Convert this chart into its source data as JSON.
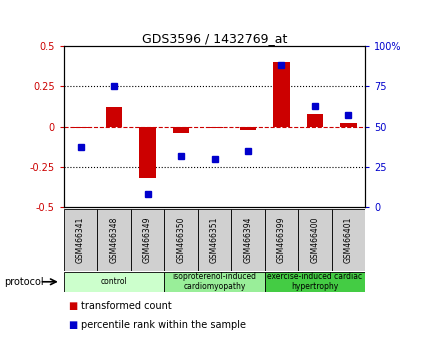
{
  "title": "GDS3596 / 1432769_at",
  "samples": [
    "GSM466341",
    "GSM466348",
    "GSM466349",
    "GSM466350",
    "GSM466351",
    "GSM466394",
    "GSM466399",
    "GSM466400",
    "GSM466401"
  ],
  "transformed_count": [
    -0.01,
    0.12,
    -0.32,
    -0.04,
    -0.01,
    -0.02,
    0.4,
    0.08,
    0.02
  ],
  "percentile_rank": [
    37,
    75,
    8,
    32,
    30,
    35,
    88,
    63,
    57
  ],
  "groups": [
    {
      "label": "control",
      "start": 0,
      "end": 3,
      "color": "#ccffcc"
    },
    {
      "label": "isoproterenol-induced\ncardiomyopathy",
      "start": 3,
      "end": 6,
      "color": "#99ee99"
    },
    {
      "label": "exercise-induced cardiac\nhypertrophy",
      "start": 6,
      "end": 9,
      "color": "#44cc44"
    }
  ],
  "bar_color": "#cc0000",
  "dot_color": "#0000cc",
  "left_ylim": [
    -0.5,
    0.5
  ],
  "right_ylim": [
    0,
    100
  ],
  "left_yticks": [
    -0.5,
    -0.25,
    0.0,
    0.25,
    0.5
  ],
  "right_yticks": [
    0,
    25,
    50,
    75,
    100
  ],
  "left_yticklabels": [
    "-0.5",
    "-0.25",
    "0",
    "0.25",
    "0.5"
  ],
  "right_yticklabels": [
    "0",
    "25",
    "50",
    "75",
    "100%"
  ],
  "hlines_dotted": [
    -0.25,
    0.25
  ],
  "hline_zero": 0.0,
  "protocol_label": "protocol",
  "legend_items": [
    {
      "label": "transformed count",
      "color": "#cc0000"
    },
    {
      "label": "percentile rank within the sample",
      "color": "#0000cc"
    }
  ],
  "sample_box_color": "#d0d0d0",
  "bar_width": 0.5
}
